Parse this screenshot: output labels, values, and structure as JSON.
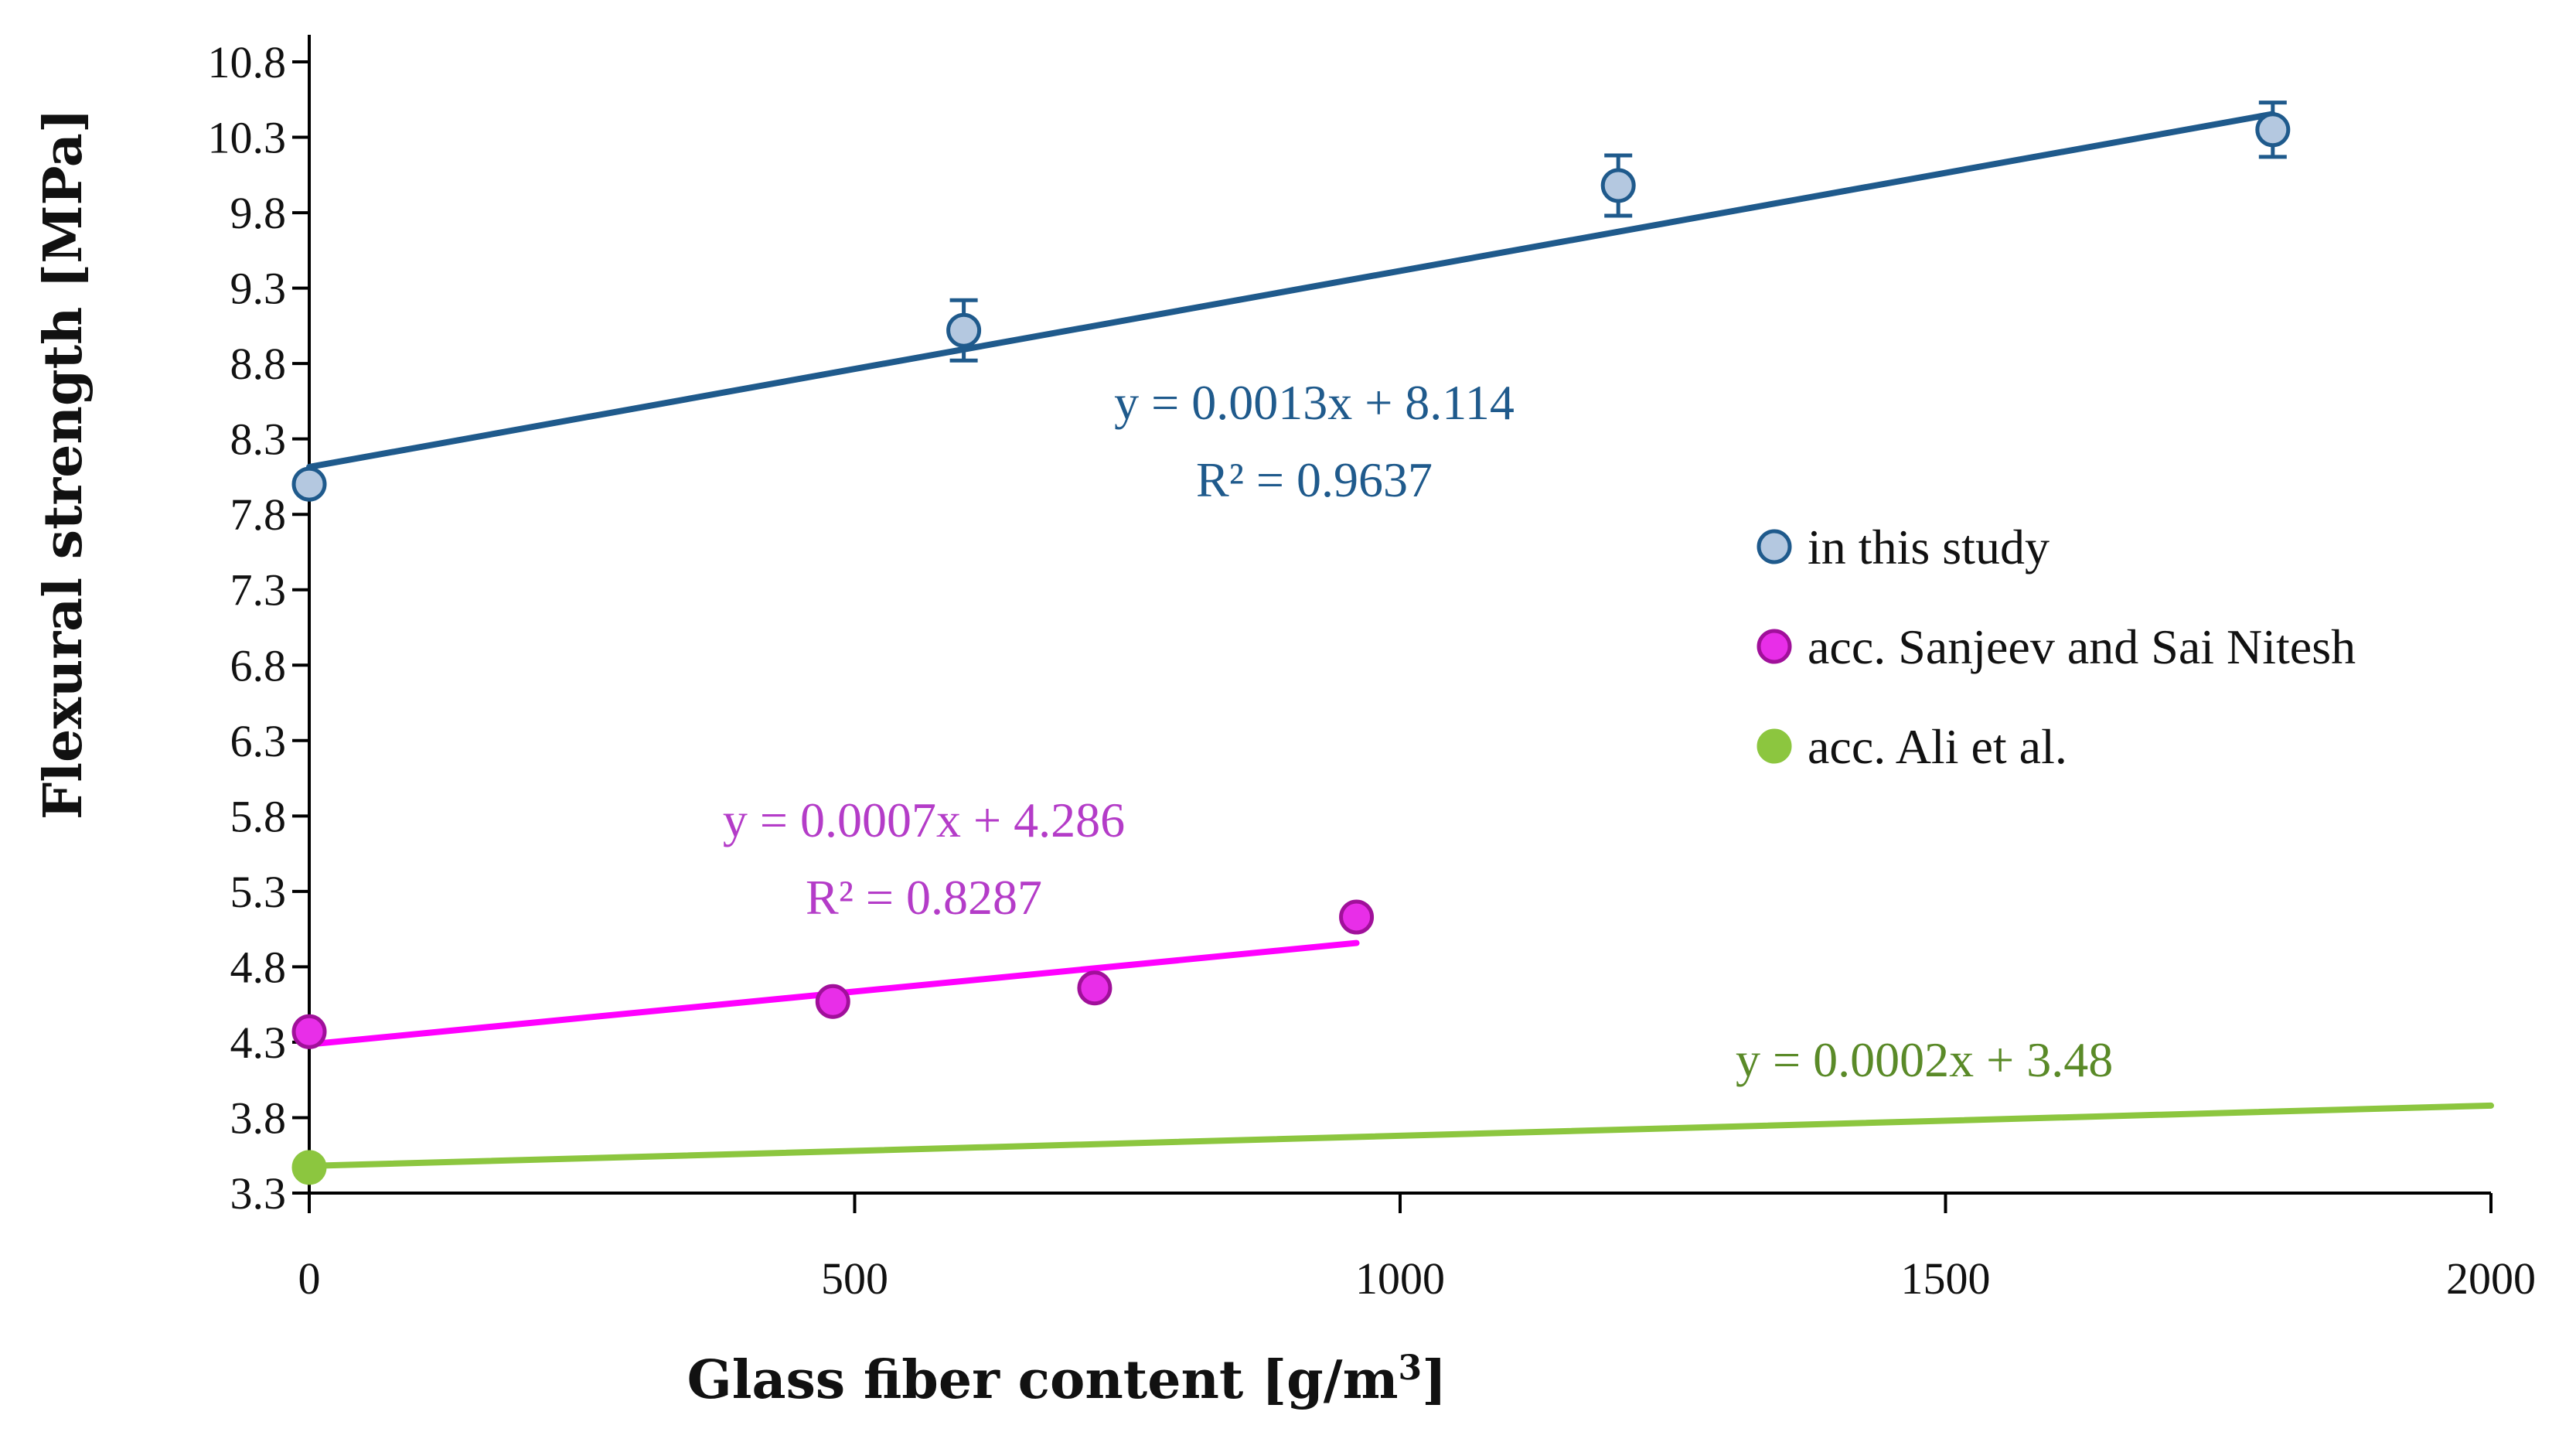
{
  "chart_data": {
    "type": "scatter",
    "title": "",
    "xlabel_main": "Glass fiber content [g/m",
    "xlabel_sup": "3",
    "xlabel_end": "]",
    "ylabel": "Flexural strength [MPa]",
    "xlim": [
      0,
      2000
    ],
    "ylim": [
      3.3,
      10.8
    ],
    "x_ticks": [
      0,
      500,
      1000,
      1500,
      2000
    ],
    "y_ticks": [
      3.3,
      3.8,
      4.3,
      4.8,
      5.3,
      5.8,
      6.3,
      6.8,
      7.3,
      7.8,
      8.3,
      8.8,
      9.3,
      9.8,
      10.3,
      10.8
    ],
    "y_tick_labels": [
      "3.3",
      "3.8",
      "4.3",
      "4.8",
      "5.3",
      "5.8",
      "6.3",
      "6.8",
      "7.3",
      "7.8",
      "8.3",
      "8.8",
      "9.3",
      "9.8",
      "10.3",
      "10.8"
    ],
    "legend_position": "right",
    "series": [
      {
        "name": "in this study",
        "color": "#1f5a8c",
        "fill": "#b4c8e0",
        "x": [
          0,
          600,
          1200,
          1800
        ],
        "y": [
          8.0,
          9.02,
          9.98,
          10.35
        ],
        "error": [
          0,
          0.2,
          0.2,
          0.18
        ],
        "trend": {
          "slope": 0.0013,
          "intercept": 8.114,
          "x_range": [
            0,
            1800
          ]
        },
        "equation": "y = 0.0013x + 8.114",
        "r2": "R² = 0.9637"
      },
      {
        "name": "acc. Sanjeev and Sai Nitesh",
        "color": "#ff00ff",
        "fill": "#e82ee8",
        "eq_color": "#b43cc8",
        "x": [
          0,
          480,
          720,
          960
        ],
        "y": [
          4.37,
          4.57,
          4.66,
          5.13
        ],
        "error": [
          0,
          0,
          0,
          0
        ],
        "trend": {
          "slope": 0.0007,
          "intercept": 4.286,
          "x_range": [
            0,
            960
          ]
        },
        "equation": "y = 0.0007x + 4.286",
        "r2": "R² = 0.8287"
      },
      {
        "name": "acc. Ali et al.",
        "color": "#8cc63f",
        "fill": "#8cc63f",
        "eq_color": "#5a8a28",
        "x": [
          0
        ],
        "y": [
          3.47
        ],
        "error": [
          0
        ],
        "trend": {
          "slope": 0.0002,
          "intercept": 3.48,
          "x_range": [
            0,
            2000
          ]
        },
        "equation": "y = 0.0002x + 3.48",
        "r2": ""
      }
    ]
  }
}
